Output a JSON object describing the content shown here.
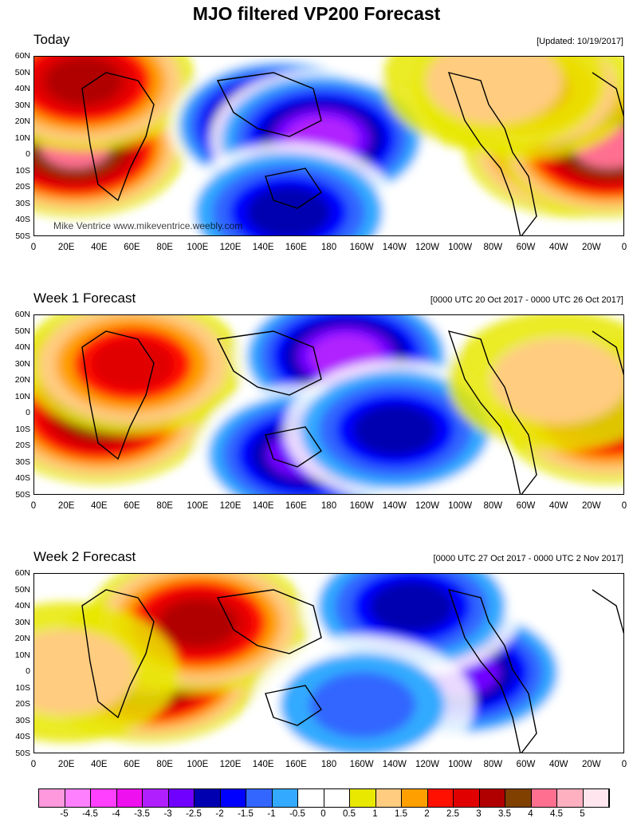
{
  "title": "MJO filtered VP200 Forecast",
  "panels": [
    {
      "label": "Today",
      "right_note": "[Updated: 10/19/2017]",
      "credit": "Mike Ventrice www.mikeventrice.weebly.com",
      "features": [
        {
          "lon": 25,
          "lat": 5,
          "value": 4.0
        },
        {
          "lon": 30,
          "lat": 45,
          "value": 3.0
        },
        {
          "lon": 150,
          "lat": 18,
          "value": -4.5
        },
        {
          "lon": 175,
          "lat": 10,
          "value": -3.5
        },
        {
          "lon": 155,
          "lat": -35,
          "value": -2.5
        },
        {
          "lon": 330,
          "lat": 5,
          "value": 3.5
        },
        {
          "lon": 350,
          "lat": 5,
          "value": 4.0
        },
        {
          "lon": 300,
          "lat": 40,
          "value": 2.0
        },
        {
          "lon": 280,
          "lat": 45,
          "value": 1.0
        }
      ]
    },
    {
      "label": "Week 1 Forecast",
      "right_note": "[0000 UTC 20 Oct 2017 - 0000 UTC 26 Oct 2017]",
      "credit": "",
      "features": [
        {
          "lon": 45,
          "lat": 15,
          "value": 5.0
        },
        {
          "lon": 40,
          "lat": 0,
          "value": 3.5
        },
        {
          "lon": 60,
          "lat": 30,
          "value": 2.5
        },
        {
          "lon": 200,
          "lat": 10,
          "value": -4.5
        },
        {
          "lon": 190,
          "lat": 35,
          "value": -3.5
        },
        {
          "lon": 165,
          "lat": -25,
          "value": -3.0
        },
        {
          "lon": 220,
          "lat": -10,
          "value": -2.5
        },
        {
          "lon": 350,
          "lat": 0,
          "value": 3.0
        },
        {
          "lon": 320,
          "lat": 20,
          "value": 1.0
        }
      ]
    },
    {
      "label": "Week 2 Forecast",
      "right_note": "[0000 UTC 27 Oct 2017 - 0000 UTC 2 Nov 2017]",
      "credit": "",
      "features": [
        {
          "lon": 80,
          "lat": 10,
          "value": 5.0
        },
        {
          "lon": 70,
          "lat": 0,
          "value": 4.0
        },
        {
          "lon": 100,
          "lat": 30,
          "value": 3.0
        },
        {
          "lon": 20,
          "lat": 0,
          "value": 1.0
        },
        {
          "lon": 240,
          "lat": 10,
          "value": -4.0
        },
        {
          "lon": 260,
          "lat": 0,
          "value": -3.0
        },
        {
          "lon": 230,
          "lat": 40,
          "value": -2.5
        },
        {
          "lon": 200,
          "lat": -20,
          "value": -1.5
        }
      ]
    }
  ],
  "lat_ticks": [
    "60N",
    "50N",
    "40N",
    "30N",
    "20N",
    "10N",
    "0",
    "10S",
    "20S",
    "30S",
    "40S",
    "50S"
  ],
  "lon_ticks": [
    "0",
    "20E",
    "40E",
    "60E",
    "80E",
    "100E",
    "120E",
    "140E",
    "160E",
    "180",
    "160W",
    "140W",
    "120W",
    "100W",
    "80W",
    "60W",
    "40W",
    "20W",
    "0"
  ],
  "colorbar": {
    "labels": [
      "-5",
      "-4.5",
      "-4",
      "-3.5",
      "-3",
      "-2.5",
      "-2",
      "-1.5",
      "-1",
      "-0.5",
      "0",
      "0.5",
      "1",
      "1.5",
      "2",
      "2.5",
      "3",
      "3.5",
      "4",
      "4.5",
      "5"
    ],
    "colors": [
      "#ff99dd",
      "#ff80ff",
      "#ff40ff",
      "#ee10ee",
      "#b020ff",
      "#7000ff",
      "#0000b0",
      "#0000ff",
      "#3366ff",
      "#33aaff",
      "#ffffff",
      "#ffffff",
      "#e8e800",
      "#ffcc80",
      "#ffa000",
      "#ff1000",
      "#e00000",
      "#b00000",
      "#804000",
      "#ff7090",
      "#ffb0c0",
      "#ffe6ee"
    ]
  }
}
